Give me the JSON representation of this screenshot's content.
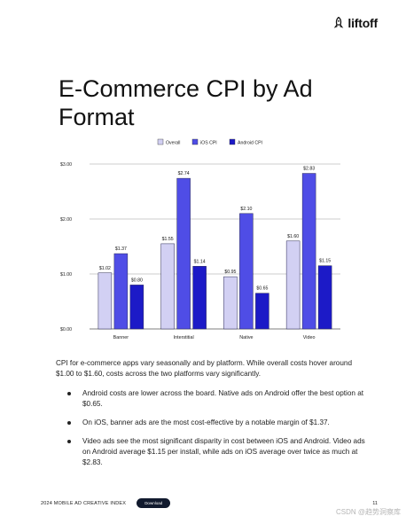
{
  "brand": {
    "name": "liftoff"
  },
  "title": "E-Commerce CPI by Ad Format",
  "chart_data": {
    "type": "bar",
    "categories": [
      "Banner",
      "Interstitial",
      "Native",
      "Video"
    ],
    "series": [
      {
        "name": "Overall",
        "values": [
          1.02,
          1.55,
          0.95,
          1.6
        ],
        "labels": [
          "$1.02",
          "$1.55",
          "$0.95",
          "$1.60"
        ],
        "color": "#d2d0f3"
      },
      {
        "name": "iOS CPI",
        "values": [
          1.37,
          2.74,
          2.1,
          2.83
        ],
        "labels": [
          "$1.37",
          "$2.74",
          "$2.10",
          "$2.83"
        ],
        "color": "#4f4de6"
      },
      {
        "name": "Android CPI",
        "values": [
          0.8,
          1.14,
          0.65,
          1.15
        ],
        "labels": [
          "$0.80",
          "$1.14",
          "$0.65",
          "$1.15"
        ],
        "color": "#1c1ac7"
      }
    ],
    "yticks": [
      0,
      1,
      2,
      3
    ],
    "ytick_labels": [
      "$0.00",
      "$1.00",
      "$2.00",
      "$3.00"
    ],
    "ylim": [
      0,
      3
    ],
    "grid": true,
    "legend": "top-center"
  },
  "body": {
    "intro": "CPI for e-commerce apps vary seasonally and by platform. While overall costs hover around $1.00 to $1.60, costs across the two platforms vary significantly.",
    "bullets": [
      "Android costs are lower across the board. Native ads on Android offer the best option at $0.65.",
      "On iOS, banner ads are the most cost-effective by a notable margin of $1.37.",
      "Video ads see the most significant disparity in cost between iOS and Android. Video ads on Android average $1.15 per install, while ads on iOS average over twice as much at $2.83."
    ]
  },
  "footer": {
    "label": "2024 MOBILE AD CREATIVE INDEX",
    "download": "Download",
    "page": "11"
  },
  "watermark": "CSDN @趋势洞察库"
}
